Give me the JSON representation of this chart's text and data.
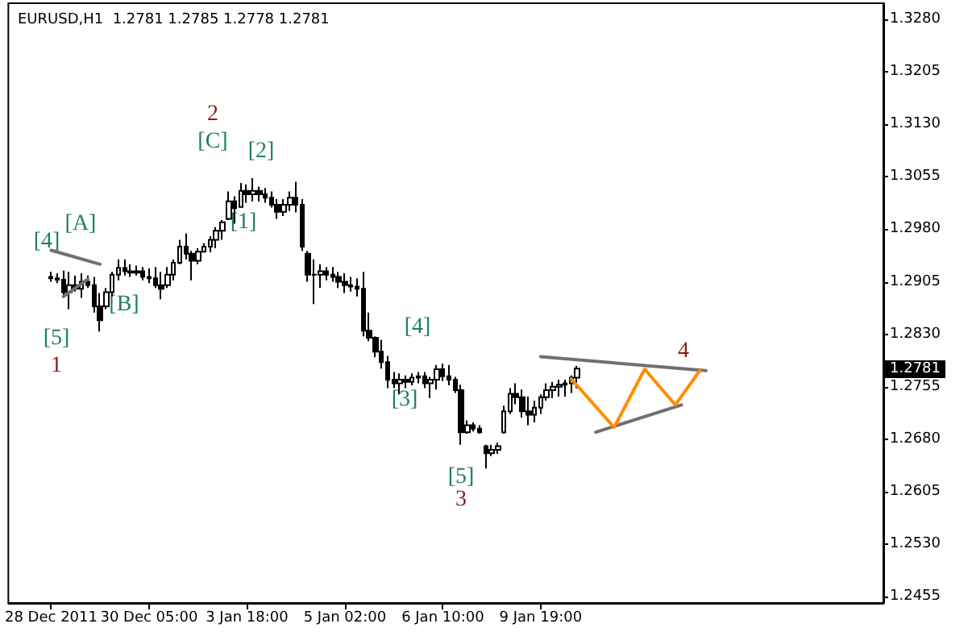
{
  "chart_data": {
    "type": "candlestick",
    "title": "EURUSD,H1  1.2781 1.2785 1.2778 1.2781",
    "categories": [
      "28 Dec 2011",
      null,
      null,
      null,
      null,
      null,
      null,
      null,
      null,
      null,
      null,
      null,
      null,
      null,
      null,
      null,
      "30 Dec 05:00",
      null,
      null,
      null,
      null,
      null,
      null,
      null,
      null,
      null,
      null,
      null,
      null,
      null,
      null,
      null,
      "3 Jan 18:00",
      null,
      null,
      null,
      null,
      null,
      null,
      null,
      null,
      null,
      null,
      null,
      null,
      null,
      null,
      null,
      "5 Jan 02:00",
      null,
      null,
      null,
      null,
      null,
      null,
      null,
      null,
      null,
      null,
      null,
      null,
      null,
      null,
      null,
      "6 Jan 10:00",
      null,
      null,
      null,
      null,
      null,
      null,
      null,
      null,
      null,
      null,
      null,
      null,
      null,
      null,
      null,
      "9 Jan 19:00",
      null,
      null,
      null,
      null,
      null,
      null,
      null,
      null,
      null,
      null,
      null,
      null,
      null,
      null,
      null,
      null,
      null,
      null,
      null,
      null,
      null,
      null,
      null,
      null,
      null,
      null,
      null,
      null,
      null,
      null,
      null,
      null,
      null,
      null,
      null,
      null,
      null,
      null,
      null,
      null,
      null,
      null,
      null,
      null,
      null,
      null,
      null,
      null,
      null,
      null,
      null,
      null,
      null,
      null,
      null,
      null
    ],
    "series": [
      {
        "color": "#000000",
        "ohlc": [
          [
            1.2912,
            1.2919,
            1.2905,
            1.291
          ],
          [
            1.291,
            1.2917,
            1.2903,
            1.2908
          ],
          [
            1.2908,
            1.2921,
            1.2884,
            1.289
          ],
          [
            1.289,
            1.2919,
            1.2866,
            1.29
          ],
          [
            1.29,
            1.2914,
            1.2891,
            1.2895
          ],
          [
            1.2895,
            1.2917,
            1.2882,
            1.2905
          ],
          [
            1.2905,
            1.2914,
            1.2896,
            1.29
          ],
          [
            1.29,
            1.2912,
            1.2861,
            1.287
          ],
          [
            1.287,
            1.2889,
            1.2834,
            1.285
          ],
          [
            1.287,
            1.2896,
            1.2866,
            1.289
          ],
          [
            1.289,
            1.2919,
            1.2884,
            1.2915
          ],
          [
            1.2915,
            1.2937,
            1.2907,
            1.2925
          ],
          [
            1.2925,
            1.2937,
            1.2914,
            1.292
          ],
          [
            1.292,
            1.293,
            1.2912,
            1.2918
          ],
          [
            1.2918,
            1.2928,
            1.2914,
            1.292
          ],
          [
            1.292,
            1.2926,
            1.2907,
            1.2912
          ],
          [
            1.2912,
            1.2924,
            1.2903,
            1.291
          ],
          [
            1.291,
            1.2926,
            1.2896,
            1.29
          ],
          [
            1.29,
            1.2919,
            1.288,
            1.2895
          ],
          [
            1.29,
            1.2926,
            1.2896,
            1.2915
          ],
          [
            1.2915,
            1.2937,
            1.2907,
            1.2932
          ],
          [
            1.2932,
            1.2965,
            1.293,
            1.2955
          ],
          [
            1.2955,
            1.2974,
            1.2937,
            1.2945
          ],
          [
            1.2945,
            1.2949,
            1.2907,
            1.2935
          ],
          [
            1.2935,
            1.2953,
            1.293,
            1.2948
          ],
          [
            1.2948,
            1.296,
            1.2947,
            1.2955
          ],
          [
            1.2955,
            1.297,
            1.2947,
            1.2965
          ],
          [
            1.2965,
            1.2983,
            1.2953,
            1.2978
          ],
          [
            1.2978,
            1.2993,
            1.2965,
            1.299
          ],
          [
            1.2995,
            1.3034,
            1.2993,
            1.302
          ],
          [
            1.302,
            1.3027,
            1.2988,
            1.301
          ],
          [
            1.3012,
            1.3046,
            1.3011,
            1.3035
          ],
          [
            1.3035,
            1.3044,
            1.3018,
            1.303
          ],
          [
            1.303,
            1.3053,
            1.302,
            1.3035
          ],
          [
            1.3035,
            1.3041,
            1.302,
            1.303
          ],
          [
            1.303,
            1.3039,
            1.3018,
            1.3025
          ],
          [
            1.3025,
            1.3034,
            1.3011,
            1.3015
          ],
          [
            1.3015,
            1.3023,
            1.2995,
            1.3005
          ],
          [
            1.3005,
            1.3023,
            1.2999,
            1.3015
          ],
          [
            1.3015,
            1.3034,
            1.3006,
            1.3025
          ],
          [
            1.3025,
            1.3048,
            1.3004,
            1.3015
          ],
          [
            1.3015,
            1.3023,
            1.2949,
            1.2955
          ],
          [
            1.2945,
            1.2949,
            1.2905,
            1.2915
          ],
          [
            1.2915,
            1.2937,
            1.2873,
            1.2915
          ],
          [
            1.2915,
            1.293,
            1.2896,
            1.292
          ],
          [
            1.292,
            1.2926,
            1.2907,
            1.2915
          ],
          [
            1.2915,
            1.2926,
            1.2905,
            1.2912
          ],
          [
            1.2912,
            1.2919,
            1.2896,
            1.2905
          ],
          [
            1.2905,
            1.2917,
            1.2889,
            1.29
          ],
          [
            1.29,
            1.2912,
            1.2891,
            1.2898
          ],
          [
            1.2898,
            1.291,
            1.2884,
            1.2895
          ],
          [
            1.2895,
            1.2919,
            1.2827,
            1.2835
          ],
          [
            1.2835,
            1.2861,
            1.282,
            1.2825
          ],
          [
            1.2825,
            1.2827,
            1.2797,
            1.2805
          ],
          [
            1.2805,
            1.2822,
            1.2781,
            1.279
          ],
          [
            1.279,
            1.2799,
            1.2753,
            1.2765
          ],
          [
            1.2765,
            1.2776,
            1.2753,
            1.276
          ],
          [
            1.276,
            1.2774,
            1.2744,
            1.2765
          ],
          [
            1.2765,
            1.2771,
            1.2753,
            1.2762
          ],
          [
            1.2762,
            1.2774,
            1.2757,
            1.2768
          ],
          [
            1.2768,
            1.2776,
            1.276,
            1.277
          ],
          [
            1.277,
            1.2776,
            1.2753,
            1.276
          ],
          [
            1.276,
            1.2769,
            1.2739,
            1.2765
          ],
          [
            1.2765,
            1.2786,
            1.2751,
            1.278
          ],
          [
            1.278,
            1.2788,
            1.2763,
            1.277
          ],
          [
            1.277,
            1.2786,
            1.2757,
            1.2765
          ],
          [
            1.2765,
            1.2769,
            1.2746,
            1.275
          ],
          [
            1.275,
            1.2758,
            1.2672,
            1.269
          ],
          [
            1.269,
            1.2707,
            1.2688,
            1.27
          ],
          [
            1.27,
            1.2704,
            1.2691,
            1.2695
          ],
          [
            1.2695,
            1.27,
            1.2688,
            1.269
          ],
          [
            1.267,
            1.2672,
            1.2638,
            1.266
          ],
          [
            1.266,
            1.2672,
            1.2656,
            1.2665
          ],
          [
            1.2665,
            1.2675,
            1.2659,
            1.267
          ],
          [
            1.269,
            1.2728,
            1.2688,
            1.272
          ],
          [
            1.272,
            1.2753,
            1.2716,
            1.2745
          ],
          [
            1.2745,
            1.276,
            1.273,
            1.274
          ],
          [
            1.274,
            1.2751,
            1.2711,
            1.272
          ],
          [
            1.272,
            1.2741,
            1.27,
            1.2715
          ],
          [
            1.2715,
            1.2735,
            1.2704,
            1.2725
          ],
          [
            1.2725,
            1.2744,
            1.2716,
            1.274
          ],
          [
            1.274,
            1.276,
            1.2735,
            1.275
          ],
          [
            1.275,
            1.2762,
            1.2739,
            1.2755
          ],
          [
            1.2755,
            1.2765,
            1.2741,
            1.2758
          ],
          [
            1.2758,
            1.2765,
            1.2741,
            1.276
          ],
          [
            1.276,
            1.2771,
            1.2746,
            1.2768
          ],
          [
            1.2768,
            1.2785,
            1.2753,
            1.2781
          ],
          null,
          null,
          null,
          null,
          null,
          null,
          null,
          null,
          null,
          null,
          null,
          null,
          null,
          null,
          null,
          null,
          null,
          null,
          null,
          null,
          null,
          null,
          null,
          null,
          null,
          null,
          null,
          null,
          null,
          null,
          null,
          null,
          null,
          null,
          null,
          null,
          null,
          null,
          null,
          null,
          null,
          null,
          null,
          null,
          null,
          null,
          null,
          null,
          null,
          null
        ]
      },
      {
        "type": "line",
        "color": "#707070",
        "values": [
          1.295,
          null,
          null,
          null,
          null,
          null,
          null,
          null,
          1.293,
          null,
          null,
          null,
          null,
          null,
          null,
          null,
          null,
          null,
          null,
          null,
          null,
          null,
          null,
          null,
          null,
          null,
          null,
          null,
          null,
          null,
          null,
          null,
          null,
          null,
          null,
          null,
          null,
          null,
          null,
          null,
          null,
          null,
          null,
          null,
          null,
          null,
          null,
          null,
          null,
          null,
          null,
          null,
          null,
          null,
          null,
          null,
          null,
          null,
          null,
          null,
          null,
          null,
          null,
          null,
          null,
          null,
          null,
          null,
          null,
          null,
          null,
          null,
          null,
          null,
          null,
          null,
          null,
          null,
          null,
          null,
          null,
          null,
          null,
          null,
          null,
          null,
          null,
          null,
          null,
          null,
          null,
          null,
          null,
          null,
          null,
          null,
          null,
          null,
          null,
          null,
          null,
          null,
          null,
          null,
          null,
          null,
          null,
          null,
          null,
          null,
          null,
          null,
          null,
          null,
          null,
          null,
          null,
          null,
          null,
          null,
          null,
          null,
          null,
          null,
          null,
          null,
          null,
          null,
          null,
          null,
          null,
          null,
          null,
          null,
          null,
          null,
          null
        ]
      },
      {
        "type": "line",
        "color": "#707070",
        "values": [
          null,
          null,
          1.2884,
          null,
          null,
          null,
          1.2909,
          null,
          null,
          null,
          null,
          null,
          null,
          null,
          null,
          null,
          null,
          null,
          null,
          null,
          null,
          null,
          null,
          null,
          null,
          null,
          null,
          null,
          null,
          null,
          null,
          null,
          null,
          null,
          null,
          null,
          null,
          null,
          null,
          null,
          null,
          null,
          null,
          null,
          null,
          null,
          null,
          null,
          null,
          null,
          null,
          null,
          null,
          null,
          null,
          null,
          null,
          null,
          null,
          null,
          null,
          null,
          null,
          null,
          null,
          null,
          null,
          null,
          null,
          null,
          null,
          null,
          null,
          null,
          null,
          null,
          null,
          null,
          null,
          null,
          null,
          null,
          null,
          null,
          null,
          null,
          null,
          null,
          null,
          null,
          null,
          null,
          null,
          null,
          null,
          null,
          null,
          null,
          null,
          null,
          null,
          null,
          null,
          null,
          null,
          null,
          null,
          null,
          null,
          null,
          null,
          null,
          null,
          null,
          null,
          null,
          null,
          null,
          null,
          null,
          null,
          null,
          null,
          null,
          null,
          null,
          null,
          null,
          null,
          null,
          null,
          null,
          null,
          null,
          null,
          null,
          null
        ]
      },
      {
        "type": "line",
        "color": "#707070",
        "values": [
          null,
          null,
          null,
          null,
          null,
          null,
          null,
          null,
          null,
          null,
          null,
          null,
          null,
          null,
          null,
          null,
          null,
          null,
          null,
          null,
          null,
          null,
          null,
          null,
          null,
          null,
          null,
          null,
          null,
          null,
          null,
          null,
          null,
          null,
          null,
          null,
          null,
          null,
          null,
          null,
          null,
          null,
          null,
          null,
          null,
          null,
          null,
          null,
          null,
          null,
          null,
          null,
          null,
          null,
          null,
          null,
          null,
          null,
          null,
          null,
          null,
          null,
          null,
          null,
          null,
          null,
          null,
          null,
          null,
          null,
          null,
          null,
          null,
          null,
          null,
          null,
          null,
          null,
          null,
          null,
          1.2798,
          null,
          null,
          null,
          null,
          null,
          null,
          null,
          null,
          null,
          null,
          null,
          null,
          null,
          null,
          null,
          null,
          null,
          null,
          null,
          null,
          null,
          null,
          null,
          null,
          null,
          null,
          1.2778,
          null,
          null,
          null,
          null,
          null,
          null,
          null,
          null,
          null,
          null,
          null,
          null,
          null,
          null,
          null,
          null,
          null,
          null,
          null,
          null,
          null,
          null,
          null,
          null,
          null,
          null,
          null,
          null,
          null
        ]
      },
      {
        "type": "line",
        "color": "#707070",
        "values": [
          null,
          null,
          null,
          null,
          null,
          null,
          null,
          null,
          null,
          null,
          null,
          null,
          null,
          null,
          null,
          null,
          null,
          null,
          null,
          null,
          null,
          null,
          null,
          null,
          null,
          null,
          null,
          null,
          null,
          null,
          null,
          null,
          null,
          null,
          null,
          null,
          null,
          null,
          null,
          null,
          null,
          null,
          null,
          null,
          null,
          null,
          null,
          null,
          null,
          null,
          null,
          null,
          null,
          null,
          null,
          null,
          null,
          null,
          null,
          null,
          null,
          null,
          null,
          null,
          null,
          null,
          null,
          null,
          null,
          null,
          null,
          null,
          null,
          null,
          null,
          null,
          null,
          null,
          null,
          null,
          null,
          null,
          null,
          null,
          null,
          null,
          null,
          null,
          null,
          1.269,
          null,
          null,
          null,
          null,
          null,
          null,
          null,
          null,
          null,
          null,
          null,
          null,
          null,
          1.2729,
          null,
          null,
          null,
          null,
          null,
          null,
          null,
          null,
          null,
          null,
          null,
          null,
          null,
          null,
          null,
          null,
          null,
          null,
          null,
          null,
          null,
          null,
          null,
          null,
          null,
          null,
          null,
          null,
          null,
          null,
          null,
          null,
          null
        ]
      },
      {
        "type": "line",
        "color": "#ff8c00",
        "values": [
          null,
          null,
          null,
          null,
          null,
          null,
          null,
          null,
          null,
          null,
          null,
          null,
          null,
          null,
          null,
          null,
          null,
          null,
          null,
          null,
          null,
          null,
          null,
          null,
          null,
          null,
          null,
          null,
          null,
          null,
          null,
          null,
          null,
          null,
          null,
          null,
          null,
          null,
          null,
          null,
          null,
          null,
          null,
          null,
          null,
          null,
          null,
          null,
          null,
          null,
          null,
          null,
          null,
          null,
          null,
          null,
          null,
          null,
          null,
          null,
          null,
          null,
          null,
          null,
          null,
          null,
          null,
          null,
          null,
          null,
          null,
          null,
          null,
          null,
          null,
          null,
          null,
          null,
          null,
          null,
          null,
          null,
          null,
          null,
          null,
          1.2766,
          null,
          null,
          null,
          null,
          null,
          null,
          1.2697,
          null,
          null,
          null,
          null,
          1.278,
          null,
          null,
          null,
          null,
          1.2729,
          null,
          null,
          null,
          1.2778,
          null,
          null,
          null,
          null,
          null,
          null,
          null,
          null,
          null,
          null,
          null,
          null,
          null,
          null,
          null,
          null,
          null,
          null,
          null,
          null,
          null,
          null,
          null,
          null,
          null,
          null,
          null,
          null,
          null,
          null
        ]
      }
    ],
    "ylim": [
      1.2446,
      1.3303
    ],
    "yticks": [
      1.2455,
      {
        "value": 1.253,
        "label": "1.2530"
      },
      1.2605,
      {
        "value": 1.268,
        "label": "1.2680"
      },
      1.2755,
      {
        "value": 1.283,
        "label": "1.2830"
      },
      1.2905,
      {
        "value": 1.298,
        "label": "1.2980"
      },
      1.3055,
      {
        "value": 1.313,
        "label": "1.3130"
      },
      1.3205,
      {
        "value": 1.328,
        "label": "1.3280"
      }
    ],
    "annotations": [
      "[4]",
      "[A]",
      "[5]",
      "1",
      "[B]",
      "2",
      "[C]",
      "[2]",
      "[1]",
      "[4]",
      "[3]",
      "[5]",
      "3",
      "4",
      "1.2781"
    ]
  }
}
